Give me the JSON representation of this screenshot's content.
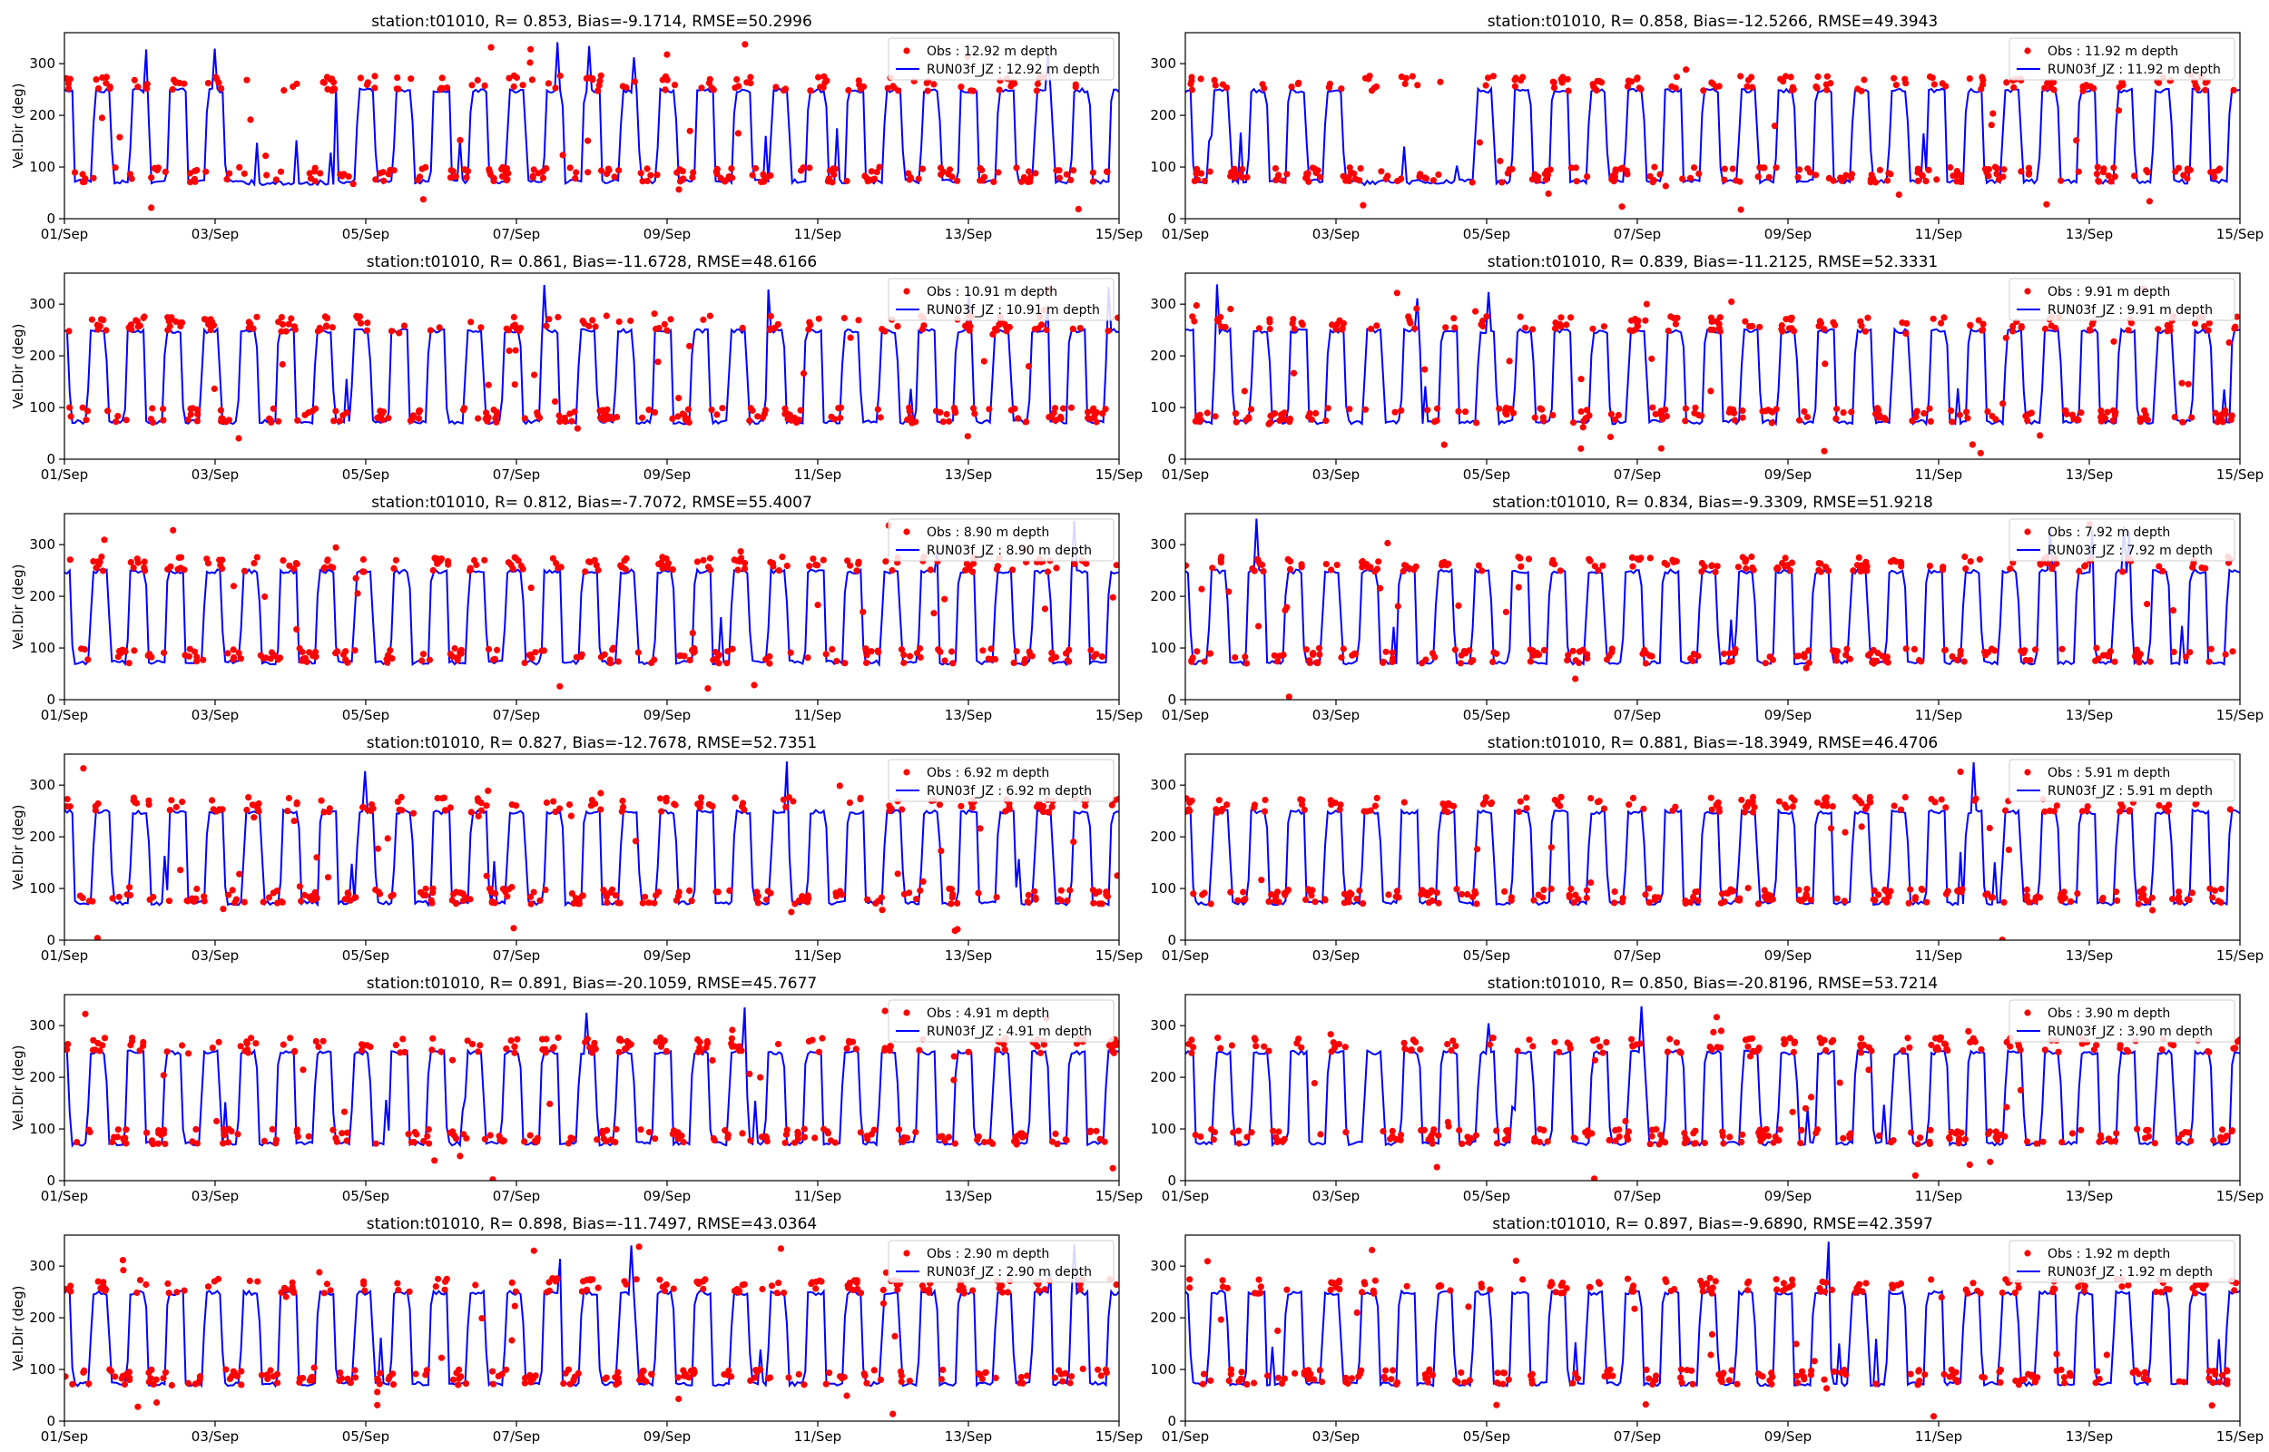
{
  "figure": {
    "colors": {
      "obs": "#ff0000",
      "model": "#0000ff"
    },
    "x_ticks": [
      "01/Sep",
      "03/Sep",
      "05/Sep",
      "07/Sep",
      "09/Sep",
      "11/Sep",
      "13/Sep",
      "15/Sep"
    ],
    "y_ticks": [
      0,
      100,
      200,
      300
    ],
    "ylabel": "Vel.Dir (deg)"
  },
  "chart_data": [
    {
      "type": "scatter",
      "title": "station:t01010, R= 0.853, Bias=-9.1714, RMSE=50.2996",
      "ylabel": "Vel.Dir (deg)",
      "xlim": [
        "01/Sep",
        "15/Sep"
      ],
      "ylim": [
        0,
        360
      ],
      "grid": false,
      "legend_position": "top-right",
      "series": [
        {
          "name": "Obs : 12.92 m depth",
          "kind": "scatter",
          "description": "observed direction alternating ~80 and ~270 deg"
        },
        {
          "name": "RUN03f_JZ : 12.92 m depth",
          "kind": "line",
          "description": "model direction alternating ~70 and ~250 deg"
        }
      ]
    },
    {
      "type": "scatter",
      "title": "station:t01010, R= 0.858, Bias=-12.5266, RMSE=49.3943",
      "ylabel": "",
      "xlim": [
        "01/Sep",
        "15/Sep"
      ],
      "ylim": [
        0,
        360
      ],
      "grid": false,
      "legend_position": "top-right",
      "series": [
        {
          "name": "Obs : 11.92 m depth",
          "kind": "scatter"
        },
        {
          "name": "RUN03f_JZ : 11.92 m depth",
          "kind": "line"
        }
      ]
    },
    {
      "type": "scatter",
      "title": "station:t01010, R= 0.861, Bias=-11.6728, RMSE=48.6166",
      "ylabel": "Vel.Dir (deg)",
      "xlim": [
        "01/Sep",
        "15/Sep"
      ],
      "ylim": [
        0,
        360
      ],
      "grid": false,
      "legend_position": "top-right",
      "series": [
        {
          "name": "Obs : 10.91 m depth",
          "kind": "scatter"
        },
        {
          "name": "RUN03f_JZ : 10.91 m depth",
          "kind": "line"
        }
      ]
    },
    {
      "type": "scatter",
      "title": "station:t01010, R= 0.839, Bias=-11.2125, RMSE=52.3331",
      "ylabel": "",
      "xlim": [
        "01/Sep",
        "15/Sep"
      ],
      "ylim": [
        0,
        360
      ],
      "grid": false,
      "legend_position": "top-right",
      "series": [
        {
          "name": "Obs : 9.91 m depth",
          "kind": "scatter"
        },
        {
          "name": "RUN03f_JZ : 9.91 m depth",
          "kind": "line"
        }
      ]
    },
    {
      "type": "scatter",
      "title": "station:t01010, R= 0.812, Bias=-7.7072, RMSE=55.4007",
      "ylabel": "Vel.Dir (deg)",
      "xlim": [
        "01/Sep",
        "15/Sep"
      ],
      "ylim": [
        0,
        360
      ],
      "grid": false,
      "legend_position": "top-right",
      "series": [
        {
          "name": "Obs : 8.90 m depth",
          "kind": "scatter"
        },
        {
          "name": "RUN03f_JZ : 8.90 m depth",
          "kind": "line"
        }
      ]
    },
    {
      "type": "scatter",
      "title": "station:t01010, R= 0.834, Bias=-9.3309, RMSE=51.9218",
      "ylabel": "",
      "xlim": [
        "01/Sep",
        "15/Sep"
      ],
      "ylim": [
        0,
        360
      ],
      "grid": false,
      "legend_position": "top-right",
      "series": [
        {
          "name": "Obs : 7.92 m depth",
          "kind": "scatter"
        },
        {
          "name": "RUN03f_JZ : 7.92 m depth",
          "kind": "line"
        }
      ]
    },
    {
      "type": "scatter",
      "title": "station:t01010, R= 0.827, Bias=-12.7678, RMSE=52.7351",
      "ylabel": "Vel.Dir (deg)",
      "xlim": [
        "01/Sep",
        "15/Sep"
      ],
      "ylim": [
        0,
        360
      ],
      "grid": false,
      "legend_position": "top-right",
      "series": [
        {
          "name": "Obs : 6.92 m depth",
          "kind": "scatter"
        },
        {
          "name": "RUN03f_JZ : 6.92 m depth",
          "kind": "line"
        }
      ]
    },
    {
      "type": "scatter",
      "title": "station:t01010, R= 0.881, Bias=-18.3949, RMSE=46.4706",
      "ylabel": "",
      "xlim": [
        "01/Sep",
        "15/Sep"
      ],
      "ylim": [
        0,
        360
      ],
      "grid": false,
      "legend_position": "top-right",
      "series": [
        {
          "name": "Obs : 5.91 m depth",
          "kind": "scatter"
        },
        {
          "name": "RUN03f_JZ : 5.91 m depth",
          "kind": "line"
        }
      ]
    },
    {
      "type": "scatter",
      "title": "station:t01010, R= 0.891, Bias=-20.1059, RMSE=45.7677",
      "ylabel": "Vel.Dir (deg)",
      "xlim": [
        "01/Sep",
        "15/Sep"
      ],
      "ylim": [
        0,
        360
      ],
      "grid": false,
      "legend_position": "top-right",
      "series": [
        {
          "name": "Obs : 4.91 m depth",
          "kind": "scatter"
        },
        {
          "name": "RUN03f_JZ : 4.91 m depth",
          "kind": "line"
        }
      ]
    },
    {
      "type": "scatter",
      "title": "station:t01010, R= 0.850, Bias=-20.8196, RMSE=53.7214",
      "ylabel": "",
      "xlim": [
        "01/Sep",
        "15/Sep"
      ],
      "ylim": [
        0,
        360
      ],
      "grid": false,
      "legend_position": "top-right",
      "series": [
        {
          "name": "Obs : 3.90 m depth",
          "kind": "scatter"
        },
        {
          "name": "RUN03f_JZ : 3.90 m depth",
          "kind": "line"
        }
      ]
    },
    {
      "type": "scatter",
      "title": "station:t01010, R= 0.898, Bias=-11.7497, RMSE=43.0364",
      "ylabel": "Vel.Dir (deg)",
      "xlim": [
        "01/Sep",
        "15/Sep"
      ],
      "ylim": [
        0,
        360
      ],
      "grid": false,
      "legend_position": "top-right",
      "series": [
        {
          "name": "Obs : 2.90 m depth",
          "kind": "scatter"
        },
        {
          "name": "RUN03f_JZ : 2.90 m depth",
          "kind": "line"
        }
      ]
    },
    {
      "type": "scatter",
      "title": "station:t01010, R= 0.897, Bias=-9.6890, RMSE=42.3597",
      "ylabel": "",
      "xlim": [
        "01/Sep",
        "15/Sep"
      ],
      "ylim": [
        0,
        360
      ],
      "grid": false,
      "legend_position": "top-right",
      "series": [
        {
          "name": "Obs : 1.92 m depth",
          "kind": "scatter"
        },
        {
          "name": "RUN03f_JZ : 1.92 m depth",
          "kind": "line"
        }
      ]
    }
  ]
}
